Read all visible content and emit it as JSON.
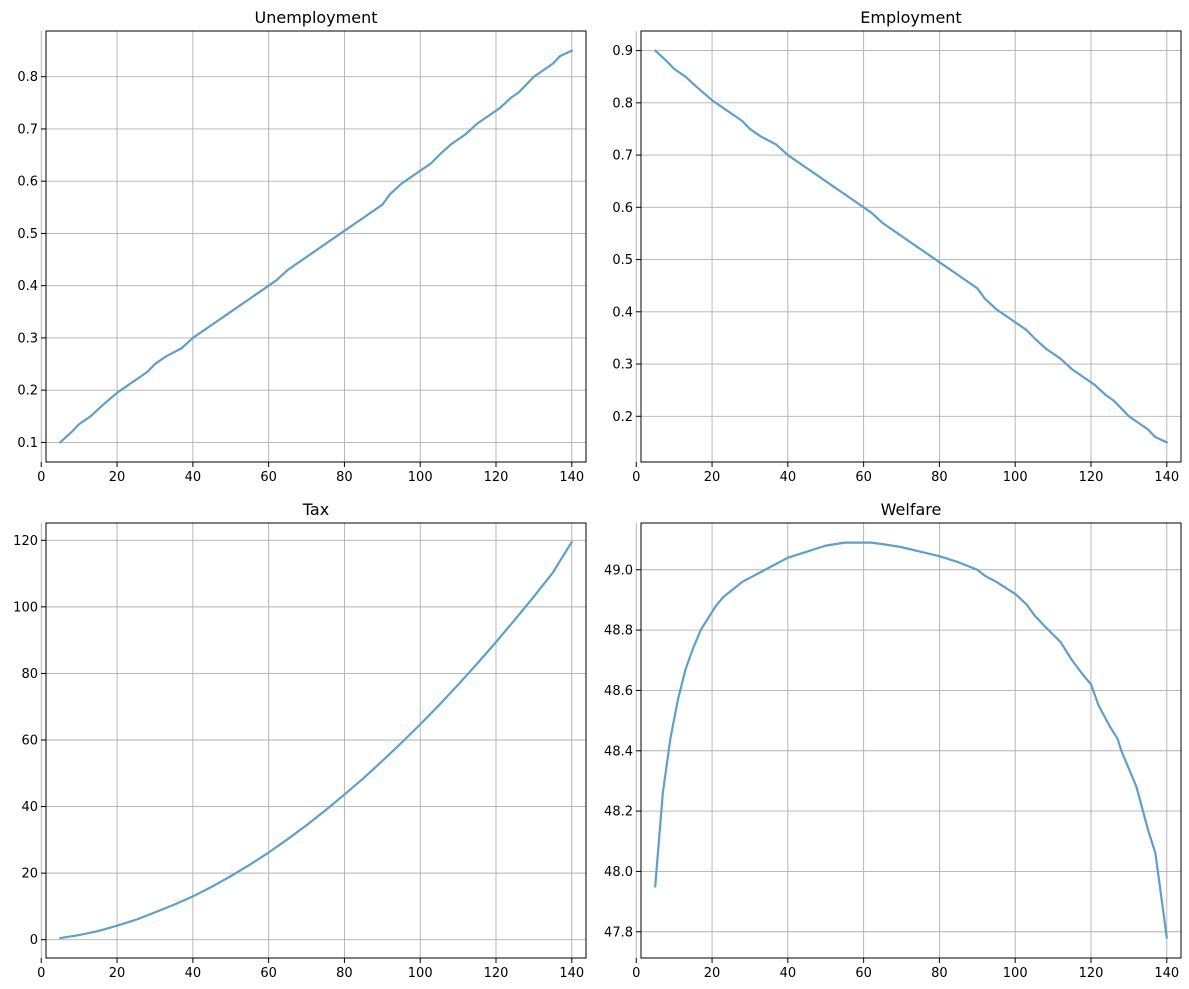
{
  "chart_data": [
    {
      "type": "line",
      "title": "Unemployment",
      "xlabel": "",
      "ylabel": "",
      "xlim": [
        1.25,
        143.75
      ],
      "ylim": [
        0.0625,
        0.8875
      ],
      "xticks": [
        0,
        20,
        40,
        60,
        80,
        100,
        120,
        140
      ],
      "yticks": [
        0.1,
        0.2,
        0.3,
        0.4,
        0.5,
        0.6,
        0.7,
        0.8
      ],
      "xtick_labels": [
        "0",
        "20",
        "40",
        "60",
        "80",
        "100",
        "120",
        "140"
      ],
      "ytick_labels": [
        "0.1",
        "0.2",
        "0.3",
        "0.4",
        "0.5",
        "0.6",
        "0.7",
        "0.8"
      ],
      "grid": true,
      "line_color": "#5f9fca",
      "series": [
        {
          "x": [
            5,
            8,
            10,
            13,
            16,
            20,
            23,
            26,
            28,
            30,
            33,
            37,
            40,
            45,
            50,
            55,
            60,
            62,
            65,
            70,
            75,
            80,
            85,
            90,
            92,
            95,
            100,
            103,
            105,
            108,
            112,
            115,
            118,
            121,
            124,
            126,
            128,
            130,
            133,
            135,
            137,
            140
          ],
          "values": [
            0.1,
            0.12,
            0.135,
            0.15,
            0.17,
            0.195,
            0.21,
            0.225,
            0.235,
            0.25,
            0.265,
            0.28,
            0.3,
            0.325,
            0.35,
            0.375,
            0.4,
            0.41,
            0.43,
            0.455,
            0.48,
            0.505,
            0.53,
            0.555,
            0.575,
            0.595,
            0.62,
            0.635,
            0.65,
            0.67,
            0.69,
            0.71,
            0.725,
            0.74,
            0.76,
            0.77,
            0.785,
            0.8,
            0.815,
            0.825,
            0.84,
            0.85
          ]
        }
      ]
    },
    {
      "type": "line",
      "title": "Employment",
      "xlabel": "",
      "ylabel": "",
      "xlim": [
        1.25,
        143.75
      ],
      "ylim": [
        0.1125,
        0.9375
      ],
      "xticks": [
        0,
        20,
        40,
        60,
        80,
        100,
        120,
        140
      ],
      "yticks": [
        0.2,
        0.3,
        0.4,
        0.5,
        0.6,
        0.7,
        0.8,
        0.9
      ],
      "xtick_labels": [
        "0",
        "20",
        "40",
        "60",
        "80",
        "100",
        "120",
        "140"
      ],
      "ytick_labels": [
        "0.2",
        "0.3",
        "0.4",
        "0.5",
        "0.6",
        "0.7",
        "0.8",
        "0.9"
      ],
      "grid": true,
      "line_color": "#5f9fca",
      "series": [
        {
          "x": [
            5,
            8,
            10,
            13,
            16,
            20,
            23,
            26,
            28,
            30,
            33,
            37,
            40,
            45,
            50,
            55,
            60,
            62,
            65,
            70,
            75,
            80,
            85,
            90,
            92,
            95,
            100,
            103,
            105,
            108,
            112,
            115,
            118,
            121,
            124,
            126,
            128,
            130,
            133,
            135,
            137,
            140
          ],
          "values": [
            0.9,
            0.88,
            0.865,
            0.85,
            0.83,
            0.805,
            0.79,
            0.775,
            0.765,
            0.75,
            0.735,
            0.72,
            0.7,
            0.675,
            0.65,
            0.625,
            0.6,
            0.59,
            0.57,
            0.545,
            0.52,
            0.495,
            0.47,
            0.445,
            0.425,
            0.405,
            0.38,
            0.365,
            0.35,
            0.33,
            0.31,
            0.29,
            0.275,
            0.26,
            0.24,
            0.23,
            0.215,
            0.2,
            0.185,
            0.175,
            0.16,
            0.15
          ]
        }
      ]
    },
    {
      "type": "line",
      "title": "Tax",
      "xlabel": "",
      "ylabel": "",
      "xlim": [
        1.25,
        143.75
      ],
      "ylim": [
        -5.5,
        125.2
      ],
      "xticks": [
        0,
        20,
        40,
        60,
        80,
        100,
        120,
        140
      ],
      "yticks": [
        0,
        20,
        40,
        60,
        80,
        100,
        120
      ],
      "xtick_labels": [
        "0",
        "20",
        "40",
        "60",
        "80",
        "100",
        "120",
        "140"
      ],
      "ytick_labels": [
        "0",
        "20",
        "40",
        "60",
        "80",
        "100",
        "120"
      ],
      "grid": true,
      "line_color": "#5f9fca",
      "series": [
        {
          "x": [
            5,
            10,
            15,
            20,
            25,
            30,
            35,
            40,
            45,
            50,
            55,
            60,
            65,
            70,
            75,
            80,
            85,
            90,
            95,
            100,
            105,
            110,
            115,
            120,
            125,
            130,
            135,
            140
          ],
          "values": [
            0.5,
            1.4,
            2.6,
            4.2,
            6.0,
            8.2,
            10.5,
            13.0,
            15.9,
            19.1,
            22.5,
            26.2,
            30.2,
            34.4,
            38.9,
            43.6,
            48.5,
            53.7,
            59.1,
            64.7,
            70.5,
            76.6,
            82.9,
            89.4,
            96.2,
            103.1,
            110.3,
            119.5
          ]
        }
      ]
    },
    {
      "type": "line",
      "title": "Welfare",
      "xlabel": "",
      "ylabel": "",
      "xlim": [
        1.25,
        143.75
      ],
      "ylim": [
        47.713,
        49.155
      ],
      "xticks": [
        0,
        20,
        40,
        60,
        80,
        100,
        120,
        140
      ],
      "yticks": [
        47.8,
        48.0,
        48.2,
        48.4,
        48.6,
        48.8,
        49.0
      ],
      "xtick_labels": [
        "0",
        "20",
        "40",
        "60",
        "80",
        "100",
        "120",
        "140"
      ],
      "ytick_labels": [
        "47.8",
        "48.0",
        "48.2",
        "48.4",
        "48.6",
        "48.8",
        "49.0"
      ],
      "grid": true,
      "line_color": "#5f9fca",
      "series": [
        {
          "x": [
            5,
            7,
            9,
            11,
            13,
            15,
            17,
            19,
            21,
            23,
            25,
            28,
            31,
            34,
            37,
            40,
            45,
            50,
            55,
            60,
            62,
            65,
            70,
            75,
            80,
            85,
            90,
            92,
            95,
            100,
            103,
            105,
            108,
            112,
            115,
            118,
            120,
            122,
            125,
            127,
            128,
            130,
            132,
            135,
            137,
            140
          ],
          "values": [
            47.95,
            48.26,
            48.44,
            48.57,
            48.67,
            48.74,
            48.8,
            48.84,
            48.88,
            48.91,
            48.93,
            48.96,
            48.98,
            49.0,
            49.02,
            49.04,
            49.06,
            49.08,
            49.09,
            49.09,
            49.09,
            49.085,
            49.075,
            49.06,
            49.045,
            49.025,
            49.0,
            48.98,
            48.96,
            48.92,
            48.885,
            48.85,
            48.81,
            48.76,
            48.7,
            48.65,
            48.62,
            48.55,
            48.48,
            48.44,
            48.4,
            48.34,
            48.28,
            48.14,
            48.06,
            47.78
          ]
        }
      ]
    }
  ]
}
